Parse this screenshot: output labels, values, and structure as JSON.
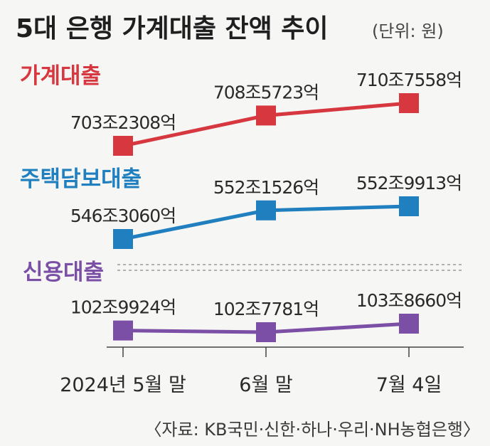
{
  "chart_data": {
    "type": "line",
    "title": "5대 은행 가계대출 잔액 추이",
    "unit": "(단위: 원)",
    "categories": [
      "2024년 5월 말",
      "6월 말",
      "7월 4일"
    ],
    "series": [
      {
        "name": "가계대출",
        "color": "#d7373f",
        "values": [
          7032308,
          7085723,
          7107558
        ],
        "labels": [
          "703조2308억",
          "708조5723억",
          "710조7558억"
        ]
      },
      {
        "name": "주택담보대출",
        "color": "#1f7fbf",
        "values": [
          5463060,
          5521526,
          5529913
        ],
        "labels": [
          "546조3060억",
          "552조1526억",
          "552조9913억"
        ]
      },
      {
        "name": "신용대출",
        "color": "#7b4fa6",
        "values": [
          1029924,
          1027781,
          1038660
        ],
        "labels": [
          "102조9924억",
          "102조7781억",
          "103조8660억"
        ]
      }
    ],
    "value_unit": "억원",
    "source": "〈자료: KB국민·신한·하나·우리·NH농협은행〉"
  }
}
